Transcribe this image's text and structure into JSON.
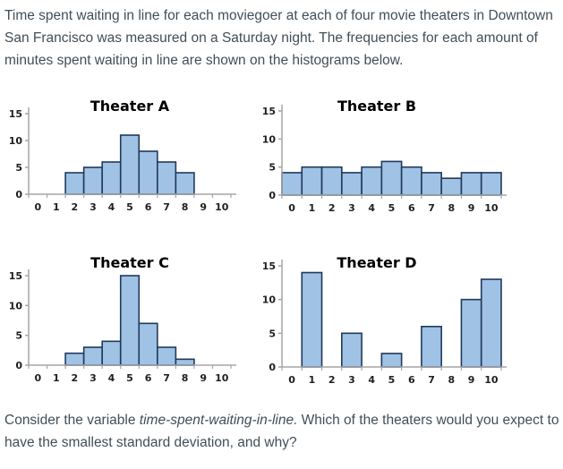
{
  "intro": {
    "lines": [
      "Time spent waiting in line for each moviegoer at each of four movie theaters in Downtown",
      "San Francisco was measured on a Saturday night. The frequencies for each amount of",
      "minutes spent waiting in line are shown on the histograms below."
    ]
  },
  "question": {
    "prefix": "Consider the variable ",
    "italic_phrase": "time-spent-waiting-in-line.",
    "suffix": " Which of the theaters would you expect to",
    "line2": "have the smallest standard deviation, and why?"
  },
  "colors": {
    "body_text": "#414e58",
    "bar_fill": "#9fc2e5",
    "bar_border": "#20395c",
    "axis": "#a6a6a6",
    "tick_label": "#1f1f1f",
    "chart_title": "#000000"
  },
  "chart_data": [
    {
      "id": "theater-a",
      "type": "bar",
      "title": "Theater A",
      "categories": [
        0,
        1,
        2,
        3,
        4,
        5,
        6,
        7,
        8,
        9,
        10
      ],
      "values": [
        0,
        0,
        4,
        5,
        6,
        11,
        8,
        6,
        4,
        0,
        0
      ],
      "xlabel": "",
      "ylabel": "",
      "ylim": [
        0,
        15
      ],
      "yticks": [
        0,
        5,
        10,
        15
      ],
      "grid": false,
      "legend": "none"
    },
    {
      "id": "theater-b",
      "type": "bar",
      "title": "Theater B",
      "categories": [
        0,
        1,
        2,
        3,
        4,
        5,
        6,
        7,
        8,
        9,
        10
      ],
      "values": [
        4,
        5,
        5,
        4,
        5,
        6,
        5,
        4,
        3,
        4,
        4
      ],
      "xlabel": "",
      "ylabel": "",
      "ylim": [
        0,
        15
      ],
      "yticks": [
        0,
        5,
        10,
        15
      ],
      "grid": false,
      "legend": "none"
    },
    {
      "id": "theater-c",
      "type": "bar",
      "title": "Theater C",
      "categories": [
        0,
        1,
        2,
        3,
        4,
        5,
        6,
        7,
        8,
        9,
        10
      ],
      "values": [
        0,
        0,
        2,
        3,
        4,
        15,
        7,
        3,
        1,
        0,
        0
      ],
      "xlabel": "",
      "ylabel": "",
      "ylim": [
        0,
        15
      ],
      "yticks": [
        0,
        5,
        10,
        15
      ],
      "grid": false,
      "legend": "none"
    },
    {
      "id": "theater-d",
      "type": "bar",
      "title": "Theater D",
      "categories": [
        0,
        1,
        2,
        3,
        4,
        5,
        6,
        7,
        8,
        9,
        10
      ],
      "values": [
        0,
        14,
        0,
        5,
        0,
        2,
        0,
        6,
        0,
        10,
        13
      ],
      "xlabel": "",
      "ylabel": "",
      "ylim": [
        0,
        15
      ],
      "yticks": [
        0,
        5,
        10,
        15
      ],
      "grid": false,
      "legend": "none"
    }
  ]
}
